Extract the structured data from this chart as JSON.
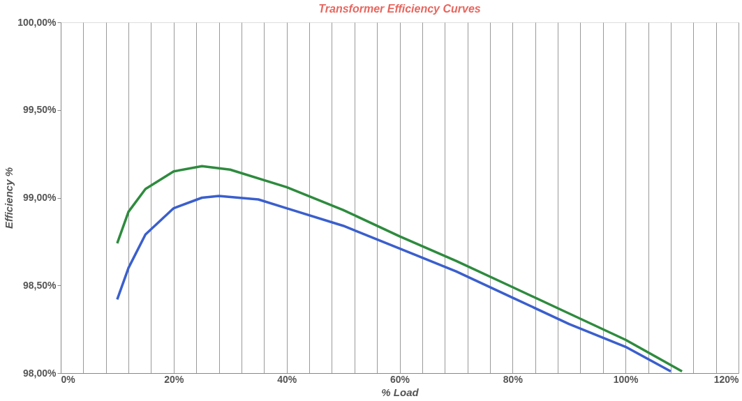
{
  "chart_data": {
    "type": "line",
    "title": "Transformer Efficiency Curves",
    "xlabel": "% Load",
    "ylabel": "Efficiency %",
    "series": [
      {
        "color": "#2e8b3e",
        "x": [
          10,
          12,
          15,
          20,
          25,
          30,
          40,
          50,
          60,
          70,
          80,
          90,
          100,
          110
        ],
        "values": [
          98.74,
          98.92,
          99.05,
          99.15,
          99.18,
          99.16,
          99.06,
          98.93,
          98.78,
          98.64,
          98.49,
          98.34,
          98.19,
          98.01
        ]
      },
      {
        "color": "#3a5fcd",
        "x": [
          10,
          12,
          15,
          20,
          25,
          28,
          35,
          40,
          50,
          60,
          70,
          80,
          90,
          100,
          108
        ],
        "values": [
          98.42,
          98.6,
          98.79,
          98.94,
          99.0,
          99.01,
          98.99,
          98.94,
          98.84,
          98.71,
          98.58,
          98.43,
          98.28,
          98.15,
          98.01
        ]
      }
    ],
    "xlim": [
      0,
      120
    ],
    "ylim": [
      98,
      100
    ],
    "xticks": [
      {
        "value": 0,
        "label": "0%"
      },
      {
        "value": 4,
        "label": null
      },
      {
        "value": 8,
        "label": null
      },
      {
        "value": 12,
        "label": null
      },
      {
        "value": 16,
        "label": null
      },
      {
        "value": 20,
        "label": "20%"
      },
      {
        "value": 24,
        "label": null
      },
      {
        "value": 28,
        "label": null
      },
      {
        "value": 32,
        "label": null
      },
      {
        "value": 36,
        "label": null
      },
      {
        "value": 40,
        "label": "40%"
      },
      {
        "value": 44,
        "label": null
      },
      {
        "value": 48,
        "label": null
      },
      {
        "value": 52,
        "label": null
      },
      {
        "value": 56,
        "label": null
      },
      {
        "value": 60,
        "label": "60%"
      },
      {
        "value": 64,
        "label": null
      },
      {
        "value": 68,
        "label": null
      },
      {
        "value": 72,
        "label": null
      },
      {
        "value": 76,
        "label": null
      },
      {
        "value": 80,
        "label": "80%"
      },
      {
        "value": 84,
        "label": null
      },
      {
        "value": 88,
        "label": null
      },
      {
        "value": 92,
        "label": null
      },
      {
        "value": 96,
        "label": null
      },
      {
        "value": 100,
        "label": "100%"
      },
      {
        "value": 104,
        "label": null
      },
      {
        "value": 108,
        "label": null
      },
      {
        "value": 112,
        "label": null
      },
      {
        "value": 116,
        "label": null
      },
      {
        "value": 120,
        "label": "120%"
      }
    ],
    "yticks": [
      {
        "value": 98,
        "label": "98,00%"
      },
      {
        "value": 98.5,
        "label": "98,50%"
      },
      {
        "value": 99,
        "label": "99,00%"
      },
      {
        "value": 99.5,
        "label": "99,50%"
      },
      {
        "value": 100,
        "label": "100,00%"
      }
    ],
    "grid": "x",
    "legend": false,
    "marker": "none",
    "line_style": "solid"
  }
}
